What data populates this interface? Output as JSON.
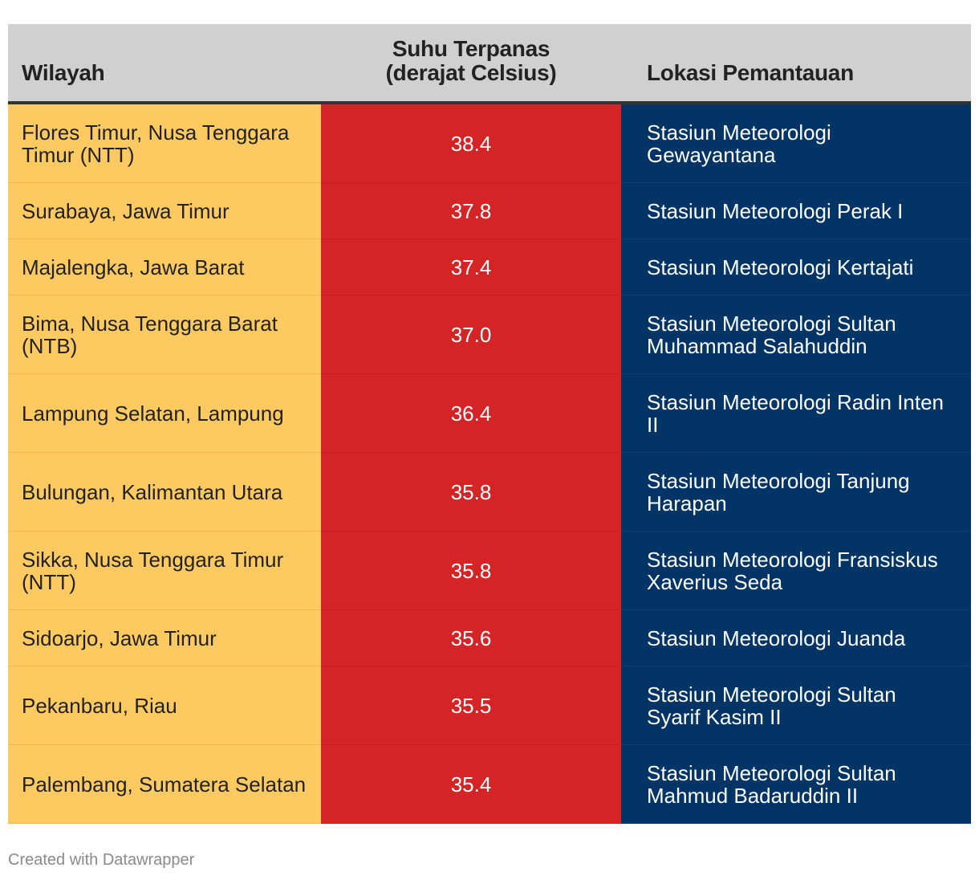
{
  "chart_data": {
    "type": "table",
    "columns": [
      "Wilayah",
      "Suhu Terpanas (derajat Celsius)",
      "Lokasi Pemantauan"
    ],
    "header": {
      "wilayah": "Wilayah",
      "suhu_line1": "Suhu Terpanas",
      "suhu_line2": "(derajat Celsius)",
      "lokasi": "Lokasi Pemantauan"
    },
    "rows": [
      {
        "wilayah": "Flores Timur, Nusa Tenggara Timur (NTT)",
        "suhu": "38.4",
        "lokasi": "Stasiun Meteorologi Gewayantana"
      },
      {
        "wilayah": "Surabaya, Jawa Timur",
        "suhu": "37.8",
        "lokasi": "Stasiun Meteorologi Perak I"
      },
      {
        "wilayah": "Majalengka, Jawa Barat",
        "suhu": "37.4",
        "lokasi": "Stasiun Meteorologi Kertajati"
      },
      {
        "wilayah": "Bima, Nusa Tenggara Barat (NTB)",
        "suhu": "37.0",
        "lokasi": "Stasiun Meteorologi Sultan Muhammad Salahuddin"
      },
      {
        "wilayah": "Lampung Selatan, Lampung",
        "suhu": "36.4",
        "lokasi": "Stasiun Meteorologi Radin Inten II"
      },
      {
        "wilayah": "Bulungan, Kalimantan Utara",
        "suhu": "35.8",
        "lokasi": "Stasiun Meteorologi Tanjung Harapan"
      },
      {
        "wilayah": "Sikka, Nusa Tenggara Timur (NTT)",
        "suhu": "35.8",
        "lokasi": "Stasiun Meteorologi Fransiskus Xaverius Seda"
      },
      {
        "wilayah": "Sidoarjo, Jawa Timur",
        "suhu": "35.6",
        "lokasi": "Stasiun Meteorologi Juanda"
      },
      {
        "wilayah": "Pekanbaru, Riau",
        "suhu": "35.5",
        "lokasi": "Stasiun Meteorologi Sultan Syarif Kasim II"
      },
      {
        "wilayah": "Palembang, Sumatera Selatan",
        "suhu": "35.4",
        "lokasi": "Stasiun Meteorologi Sultan Mahmud Badaruddin II"
      }
    ],
    "colors": {
      "header_bg": "#d0d0d0",
      "col_wilayah_bg": "#fdca62",
      "col_suhu_bg": "#d42426",
      "col_lokasi_bg": "#023466"
    }
  },
  "footer": {
    "credit": "Created with Datawrapper"
  }
}
